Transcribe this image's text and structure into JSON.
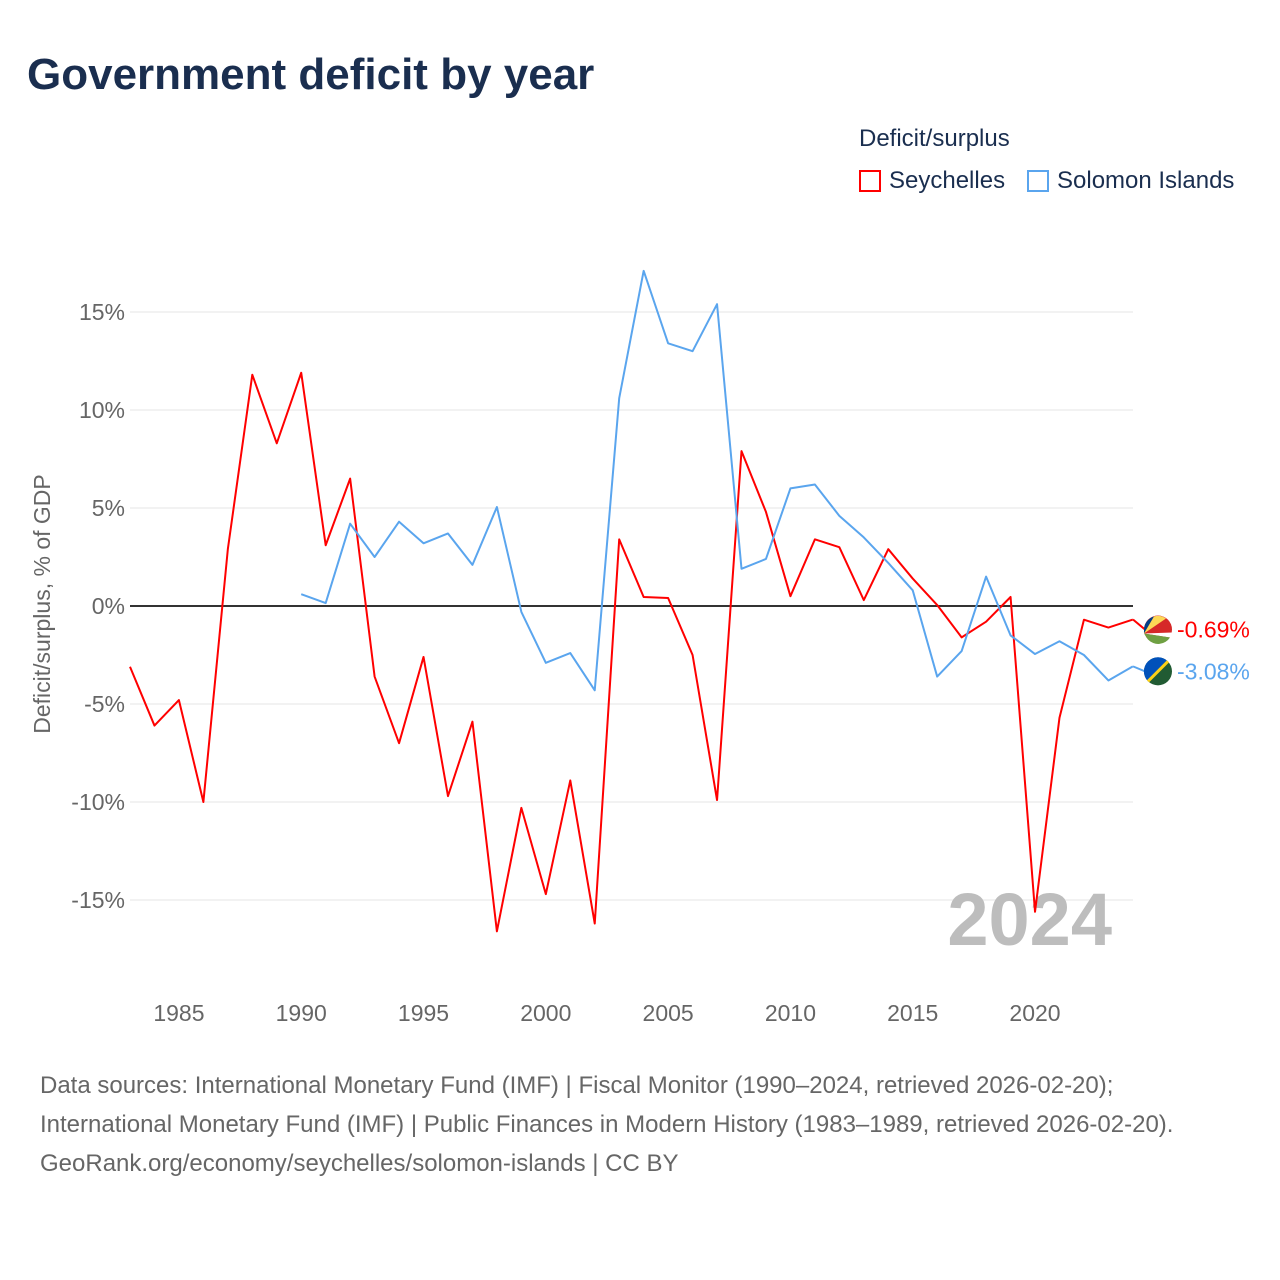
{
  "title": "Government deficit by year",
  "legend": {
    "title": "Deficit/surplus",
    "items": [
      {
        "name": "Seychelles",
        "color": "#ff0000"
      },
      {
        "name": "Solomon Islands",
        "color": "#5aa5ee"
      }
    ]
  },
  "footer": {
    "line1": "Data sources: International Monetary Fund (IMF) | Fiscal Monitor (1990–2024, retrieved 2026-02-20);",
    "line2": "International Monetary Fund (IMF) | Public Finances in Modern History (1983–1989, retrieved 2026-02-20).",
    "line3": "GeoRank.org/economy/seychelles/solomon-islands | CC BY"
  },
  "chart_data": {
    "type": "line",
    "title": "Government deficit by year",
    "ylabel": "Deficit/surplus, % of GDP",
    "xlabel": "",
    "ylim": [
      -18,
      18
    ],
    "xlim": [
      1983,
      2024
    ],
    "yticks": [
      15,
      10,
      5,
      0,
      -5,
      -10,
      -15
    ],
    "ytick_labels": [
      "15%",
      "10%",
      "5%",
      "0%",
      "-5%",
      "-10%",
      "-15%"
    ],
    "xticks": [
      1985,
      1990,
      1995,
      2000,
      2005,
      2010,
      2015,
      2020
    ],
    "year_watermark": "2024",
    "series": [
      {
        "name": "Seychelles",
        "color": "#ff0000",
        "end_label": "-0.69%",
        "start": 1983,
        "values": [
          -3.1,
          -6.1,
          -4.8,
          -10.0,
          2.9,
          11.8,
          8.3,
          11.9,
          3.1,
          6.5,
          -3.6,
          -7.0,
          -2.6,
          -9.7,
          -5.9,
          -16.6,
          -10.3,
          -14.7,
          -8.9,
          -16.2,
          3.4,
          0.46,
          0.41,
          -2.5,
          -9.9,
          7.9,
          4.8,
          0.5,
          3.4,
          3.0,
          0.3,
          2.9,
          1.4,
          0.05,
          -1.6,
          -0.8,
          0.46,
          -15.6,
          -5.7,
          -0.7,
          -1.1,
          -0.69
        ]
      },
      {
        "name": "Solomon Islands",
        "color": "#5aa5ee",
        "end_label": "-3.08%",
        "start": 1990,
        "values": [
          0.6,
          0.15,
          4.2,
          2.5,
          4.3,
          3.2,
          3.7,
          2.1,
          5.05,
          -0.3,
          -2.9,
          -2.4,
          -4.3,
          10.6,
          17.1,
          13.4,
          13.0,
          15.4,
          1.9,
          2.4,
          6.0,
          6.2,
          4.6,
          3.5,
          2.2,
          0.8,
          -3.6,
          -2.3,
          1.5,
          -1.5,
          -2.45,
          -1.8,
          -2.5,
          -3.8,
          -3.08
        ]
      }
    ]
  }
}
